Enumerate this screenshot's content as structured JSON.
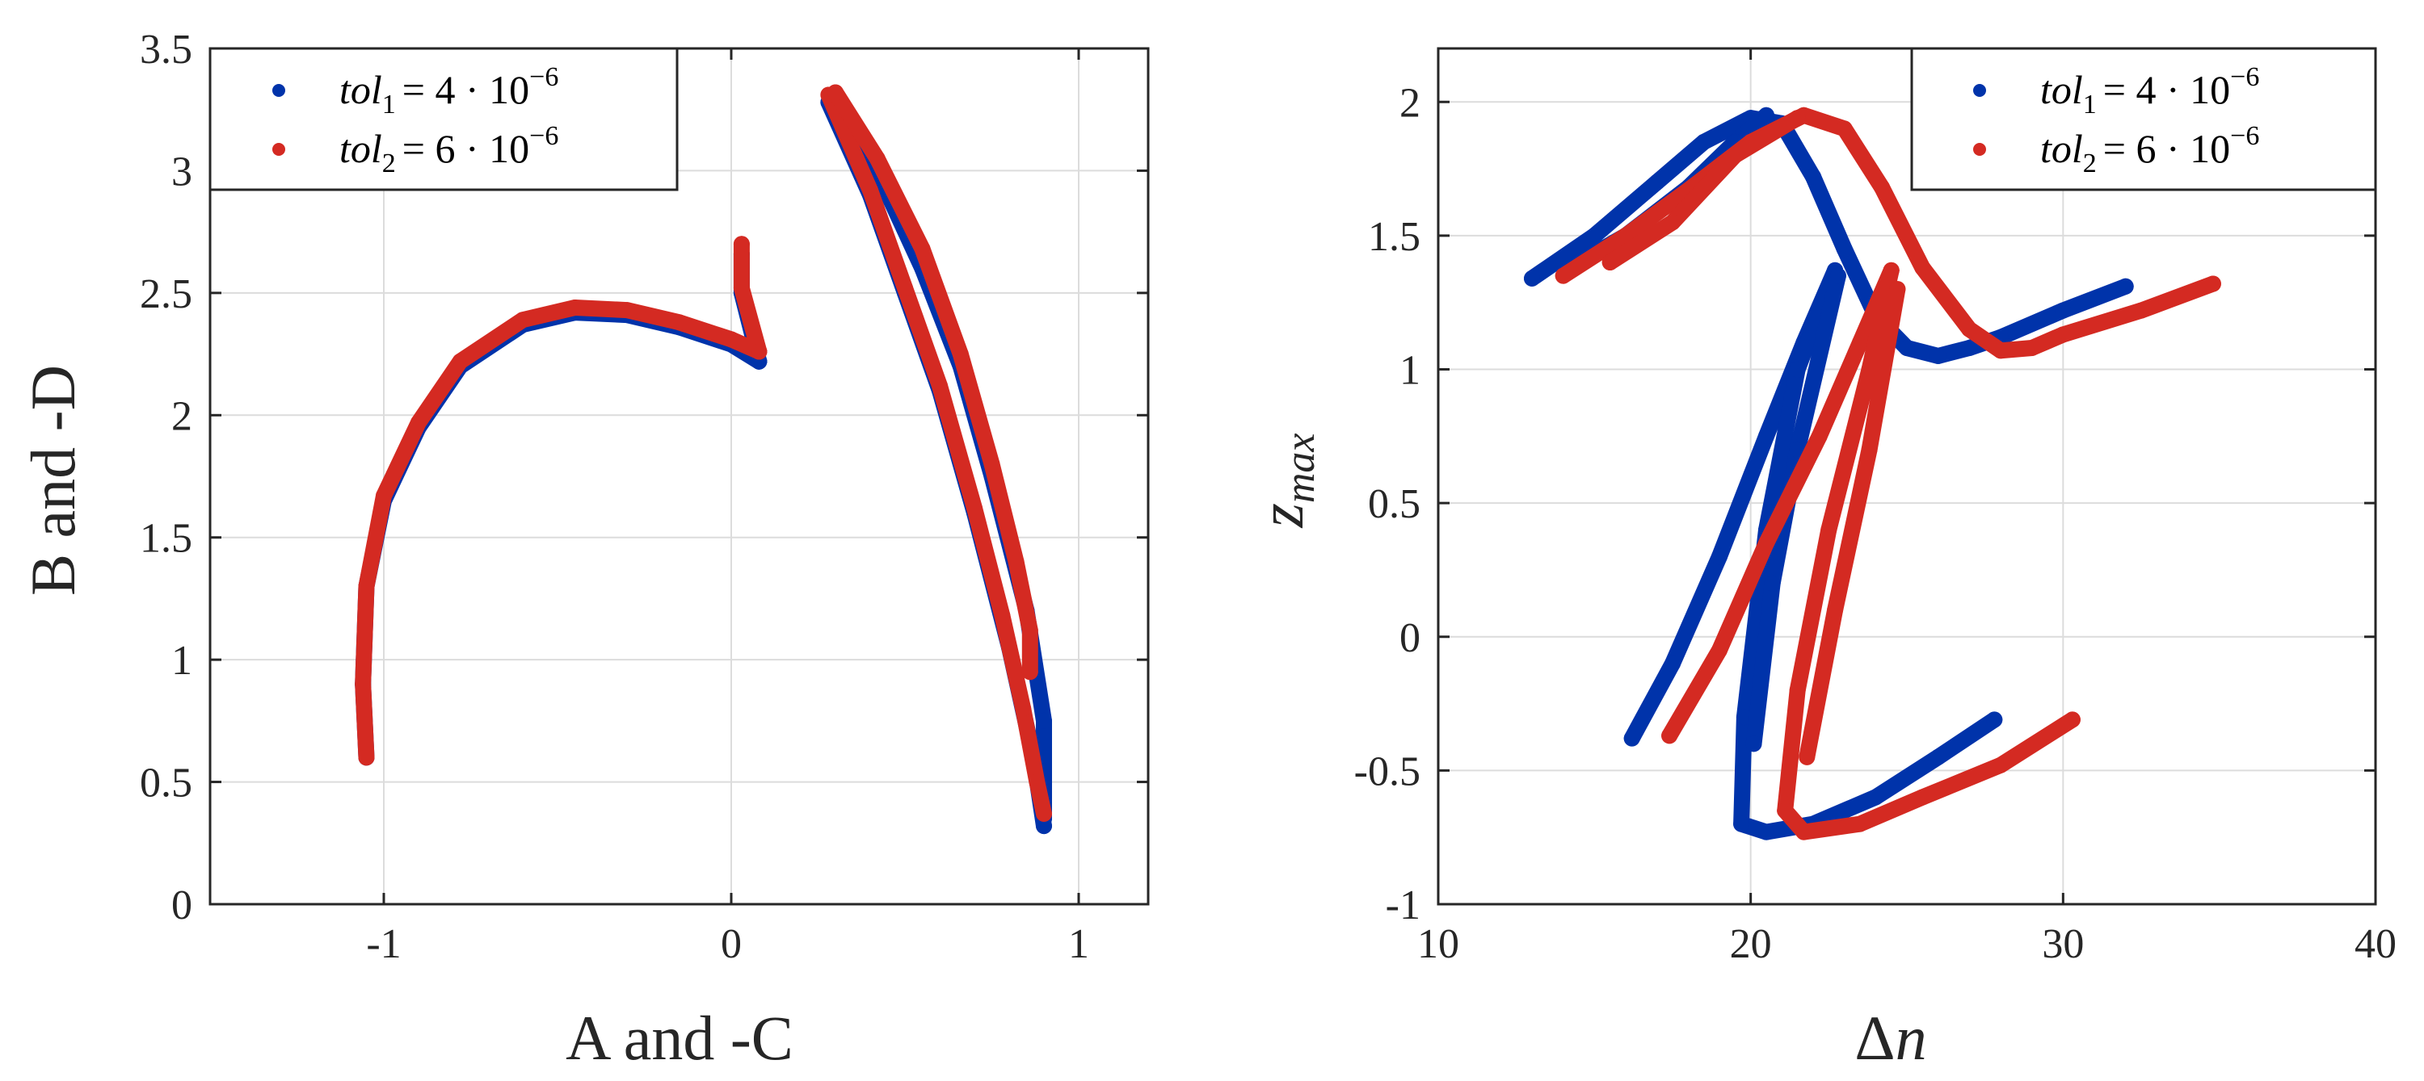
{
  "colors": {
    "tol1": "#0033aa",
    "tol2": "#d42a22"
  },
  "chart_data": [
    {
      "type": "scatter",
      "xlabel": "A and -C",
      "ylabel": "B and -D",
      "xlim": [
        -1.5,
        1.2
      ],
      "ylim": [
        0,
        3.5
      ],
      "xticks": [
        -1,
        0,
        1
      ],
      "yticks": [
        0,
        0.5,
        1,
        1.5,
        2,
        2.5,
        3,
        3.5
      ],
      "xtick_labels": [
        "-1",
        "0",
        "1"
      ],
      "ytick_labels": [
        "0",
        "0.5",
        "1",
        "1.5",
        "2",
        "2.5",
        "3",
        "3.5"
      ],
      "grid": true,
      "legend": "top-left",
      "series": [
        {
          "name": "tol1 = 4·10^-6",
          "color_key": "tol1",
          "paths": [
            [
              [
                -1.05,
                0.6
              ],
              [
                -1.06,
                0.9
              ],
              [
                -1.05,
                1.3
              ],
              [
                -1.0,
                1.65
              ],
              [
                -0.9,
                1.95
              ],
              [
                -0.78,
                2.2
              ],
              [
                -0.6,
                2.37
              ],
              [
                -0.45,
                2.42
              ],
              [
                -0.3,
                2.41
              ],
              [
                -0.15,
                2.36
              ],
              [
                0.0,
                2.29
              ],
              [
                0.08,
                2.22
              ]
            ],
            [
              [
                0.08,
                2.22
              ],
              [
                0.03,
                2.5
              ],
              [
                0.03,
                2.66
              ]
            ],
            [
              [
                0.28,
                3.28
              ],
              [
                0.4,
                2.9
              ],
              [
                0.5,
                2.5
              ],
              [
                0.6,
                2.1
              ],
              [
                0.7,
                1.6
              ],
              [
                0.8,
                1.05
              ],
              [
                0.87,
                0.6
              ],
              [
                0.9,
                0.32
              ]
            ],
            [
              [
                0.3,
                3.3
              ],
              [
                0.42,
                3.0
              ],
              [
                0.55,
                2.6
              ],
              [
                0.66,
                2.2
              ],
              [
                0.75,
                1.75
              ],
              [
                0.85,
                1.2
              ],
              [
                0.9,
                0.75
              ],
              [
                0.9,
                0.35
              ]
            ]
          ]
        },
        {
          "name": "tol2 = 6·10^-6",
          "color_key": "tol2",
          "paths": [
            [
              [
                -1.05,
                0.6
              ],
              [
                -1.06,
                0.9
              ],
              [
                -1.05,
                1.3
              ],
              [
                -1.0,
                1.67
              ],
              [
                -0.9,
                1.97
              ],
              [
                -0.78,
                2.22
              ],
              [
                -0.6,
                2.39
              ],
              [
                -0.45,
                2.44
              ],
              [
                -0.3,
                2.43
              ],
              [
                -0.15,
                2.38
              ],
              [
                0.0,
                2.31
              ],
              [
                0.08,
                2.26
              ]
            ],
            [
              [
                0.08,
                2.26
              ],
              [
                0.03,
                2.52
              ],
              [
                0.03,
                2.7
              ]
            ],
            [
              [
                0.28,
                3.31
              ],
              [
                0.4,
                2.92
              ],
              [
                0.5,
                2.52
              ],
              [
                0.6,
                2.12
              ],
              [
                0.7,
                1.62
              ],
              [
                0.78,
                1.18
              ],
              [
                0.84,
                0.8
              ],
              [
                0.88,
                0.5
              ],
              [
                0.9,
                0.37
              ]
            ],
            [
              [
                0.3,
                3.32
              ],
              [
                0.42,
                3.05
              ],
              [
                0.55,
                2.68
              ],
              [
                0.66,
                2.25
              ],
              [
                0.75,
                1.8
              ],
              [
                0.82,
                1.4
              ],
              [
                0.86,
                1.12
              ],
              [
                0.86,
                0.95
              ]
            ]
          ]
        }
      ]
    },
    {
      "type": "scatter",
      "xlabel": "Δn",
      "ylabel": "z_max",
      "xlim": [
        10,
        40
      ],
      "ylim": [
        -1,
        2.2
      ],
      "xticks": [
        10,
        20,
        30,
        40
      ],
      "yticks": [
        -1,
        -0.5,
        0,
        0.5,
        1,
        1.5,
        2
      ],
      "xtick_labels": [
        "10",
        "20",
        "30",
        "40"
      ],
      "ytick_labels": [
        "-1",
        "-0.5",
        "0",
        "0.5",
        "1",
        "1.5",
        "2"
      ],
      "grid": true,
      "legend": "top-right",
      "series": [
        {
          "name": "tol1 = 4·10^-6",
          "color_key": "tol1",
          "paths": [
            [
              [
                13,
                1.34
              ],
              [
                15,
                1.5
              ],
              [
                17,
                1.7
              ],
              [
                18.5,
                1.85
              ],
              [
                20,
                1.94
              ],
              [
                21,
                1.92
              ],
              [
                22,
                1.72
              ],
              [
                23,
                1.45
              ],
              [
                24,
                1.2
              ],
              [
                25,
                1.08
              ],
              [
                26,
                1.05
              ],
              [
                27,
                1.08
              ],
              [
                28,
                1.12
              ],
              [
                30,
                1.22
              ],
              [
                32,
                1.31
              ]
            ],
            [
              [
                14.5,
                1.4
              ],
              [
                16,
                1.5
              ],
              [
                18,
                1.68
              ],
              [
                19.5,
                1.85
              ],
              [
                20.5,
                1.95
              ]
            ],
            [
              [
                16.2,
                -0.38
              ],
              [
                17.5,
                -0.1
              ],
              [
                19,
                0.3
              ],
              [
                20.5,
                0.75
              ],
              [
                21.7,
                1.1
              ],
              [
                22.7,
                1.37
              ]
            ],
            [
              [
                22.7,
                1.37
              ],
              [
                21.5,
                1.0
              ],
              [
                20.5,
                0.4
              ],
              [
                19.8,
                -0.3
              ],
              [
                19.7,
                -0.7
              ],
              [
                20.5,
                -0.73
              ],
              [
                22,
                -0.7
              ],
              [
                24,
                -0.6
              ],
              [
                26,
                -0.45
              ],
              [
                27.8,
                -0.31
              ]
            ],
            [
              [
                22.8,
                1.35
              ],
              [
                21.5,
                0.7
              ],
              [
                20.7,
                0.2
              ],
              [
                20.1,
                -0.4
              ]
            ]
          ]
        },
        {
          "name": "tol2 = 6·10^-6",
          "color_key": "tol2",
          "paths": [
            [
              [
                14,
                1.35
              ],
              [
                16,
                1.5
              ],
              [
                18,
                1.67
              ],
              [
                20,
                1.85
              ],
              [
                21.7,
                1.95
              ],
              [
                23,
                1.9
              ],
              [
                24.2,
                1.68
              ],
              [
                25.5,
                1.38
              ],
              [
                27,
                1.15
              ],
              [
                28,
                1.07
              ],
              [
                29,
                1.08
              ],
              [
                30,
                1.13
              ],
              [
                32.5,
                1.22
              ],
              [
                34.8,
                1.32
              ]
            ],
            [
              [
                15.5,
                1.4
              ],
              [
                17.5,
                1.55
              ],
              [
                19.5,
                1.8
              ],
              [
                21.5,
                1.94
              ]
            ],
            [
              [
                17.4,
                -0.37
              ],
              [
                19,
                -0.05
              ],
              [
                20.5,
                0.35
              ],
              [
                22.2,
                0.75
              ],
              [
                23.5,
                1.1
              ],
              [
                24.5,
                1.37
              ]
            ],
            [
              [
                24.5,
                1.37
              ],
              [
                23.8,
                1.0
              ],
              [
                22.5,
                0.4
              ],
              [
                21.5,
                -0.2
              ],
              [
                21.1,
                -0.65
              ],
              [
                21.7,
                -0.73
              ],
              [
                23.5,
                -0.7
              ],
              [
                25.5,
                -0.6
              ],
              [
                28,
                -0.48
              ],
              [
                30.3,
                -0.31
              ]
            ],
            [
              [
                24.7,
                1.3
              ],
              [
                23.8,
                0.7
              ],
              [
                22.7,
                0.1
              ],
              [
                21.8,
                -0.45
              ]
            ]
          ]
        }
      ]
    }
  ],
  "legend": {
    "entries": [
      {
        "symbol": "tol",
        "subscript": "1",
        "rhs": "= 4 · 10",
        "exp": "−6",
        "color_key": "tol1"
      },
      {
        "symbol": "tol",
        "subscript": "2",
        "rhs": "= 6 · 10",
        "exp": "−6",
        "color_key": "tol2"
      }
    ]
  },
  "axis_labels": {
    "left_x": "A and -C",
    "left_y": "B and -D",
    "right_x_symbol": "Δ",
    "right_x_var": "n",
    "right_y_var": "z",
    "right_y_sub": "max"
  }
}
